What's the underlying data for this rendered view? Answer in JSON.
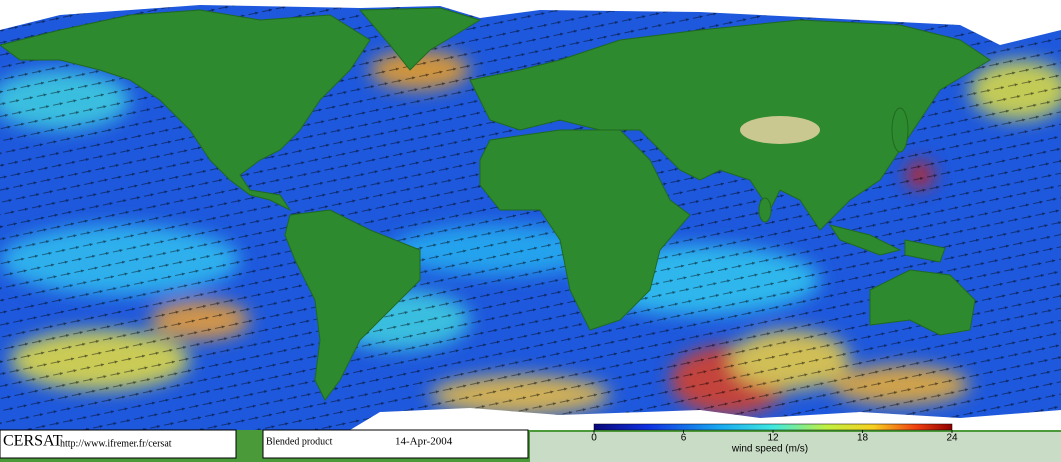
{
  "footer": {
    "logo": "CERSAT",
    "url": "http://www.ifremer.fr/cersat",
    "product": "Blended product",
    "date": "14-Apr-2004"
  },
  "colorbar": {
    "label": "wind speed (m/s)",
    "lim": [
      0,
      24
    ],
    "ticks": [
      0,
      6,
      12,
      18,
      24
    ]
  }
}
